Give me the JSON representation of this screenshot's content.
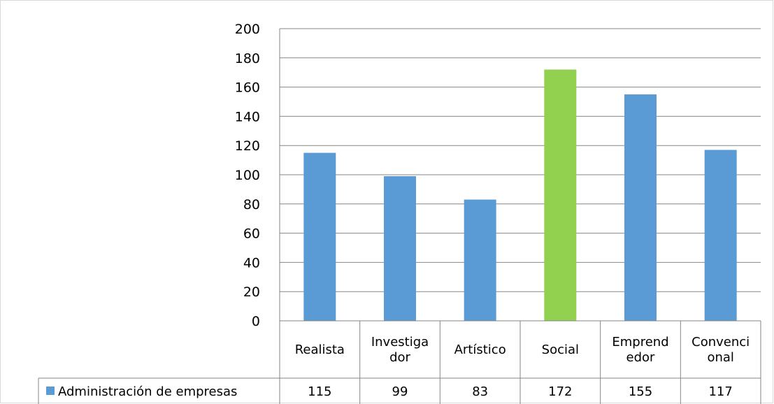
{
  "chart_data": {
    "type": "bar",
    "categories": [
      [
        "Realista"
      ],
      [
        "Investiga",
        "dor"
      ],
      [
        "Artístico"
      ],
      [
        "Social"
      ],
      [
        "Emprend",
        "edor"
      ],
      [
        "Convenci",
        "onal"
      ]
    ],
    "series": [
      {
        "name": "Administración de empresas",
        "values": [
          115,
          99,
          83,
          172,
          155,
          117
        ],
        "color": "#5b9bd5",
        "highlight": {
          "index": 3,
          "color": "#92d050"
        }
      }
    ],
    "ylim": [
      0,
      200
    ],
    "yticks": [
      0,
      20,
      40,
      60,
      80,
      100,
      120,
      140,
      160,
      180,
      200
    ],
    "grid": true,
    "data_table": true,
    "gridline_color": "#868686"
  }
}
